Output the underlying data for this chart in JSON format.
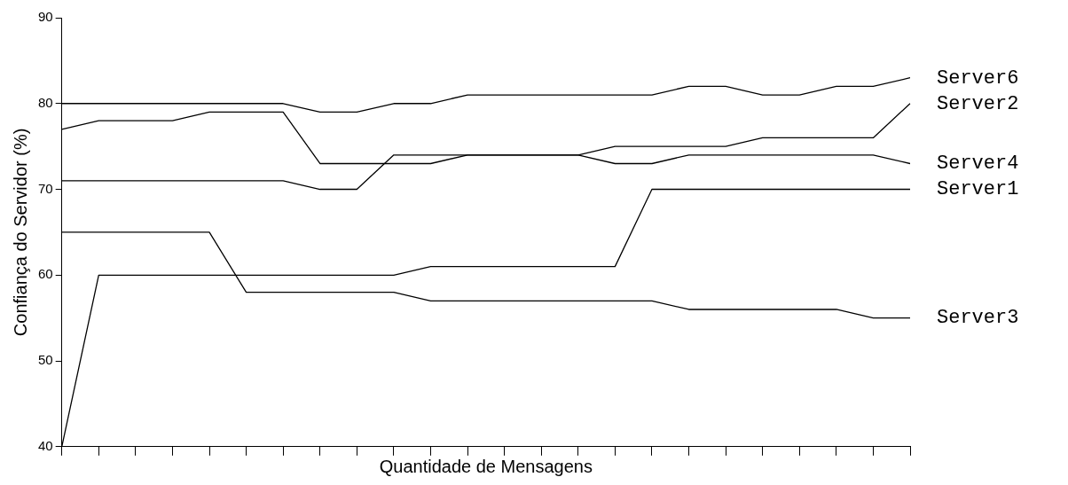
{
  "chart_data": {
    "type": "line",
    "xlabel": "Quantidade de Mensagens",
    "ylabel": "Confiança do Servidor (%)",
    "categories": [
      null,
      null,
      null,
      null,
      null,
      null,
      null,
      null,
      null,
      null,
      null,
      null,
      null,
      null,
      null,
      null,
      null,
      null,
      null,
      null,
      null,
      null,
      null,
      null
    ],
    "ylim": [
      40,
      90
    ],
    "yticks": [
      40,
      50,
      60,
      70,
      80,
      90
    ],
    "grid": false,
    "legend": false,
    "marker": "none",
    "line_style": "solid",
    "series": [
      {
        "name": "Server6",
        "color": "#000000",
        "values": [
          80,
          80,
          80,
          80,
          80,
          80,
          80,
          79,
          79,
          80,
          80,
          81,
          81,
          81,
          81,
          81,
          81,
          82,
          82,
          81,
          81,
          82,
          82,
          83
        ]
      },
      {
        "name": "Server2",
        "color": "#000000",
        "values": [
          77,
          78,
          78,
          78,
          79,
          79,
          79,
          73,
          73,
          73,
          73,
          74,
          74,
          74,
          74,
          75,
          75,
          75,
          75,
          76,
          76,
          76,
          76,
          80
        ]
      },
      {
        "name": "Server4",
        "color": "#000000",
        "values": [
          71,
          71,
          71,
          71,
          71,
          71,
          71,
          70,
          70,
          74,
          74,
          74,
          74,
          74,
          74,
          73,
          73,
          74,
          74,
          74,
          74,
          74,
          74,
          73
        ]
      },
      {
        "name": "Server1",
        "color": "#000000",
        "values": [
          40,
          60,
          60,
          60,
          60,
          60,
          60,
          60,
          60,
          60,
          61,
          61,
          61,
          61,
          61,
          61,
          70,
          70,
          70,
          70,
          70,
          70,
          70,
          70
        ]
      },
      {
        "name": "Server3",
        "color": "#000000",
        "values": [
          65,
          65,
          65,
          65,
          65,
          58,
          58,
          58,
          58,
          58,
          57,
          57,
          57,
          57,
          57,
          57,
          57,
          56,
          56,
          56,
          56,
          56,
          55,
          55
        ]
      }
    ]
  }
}
